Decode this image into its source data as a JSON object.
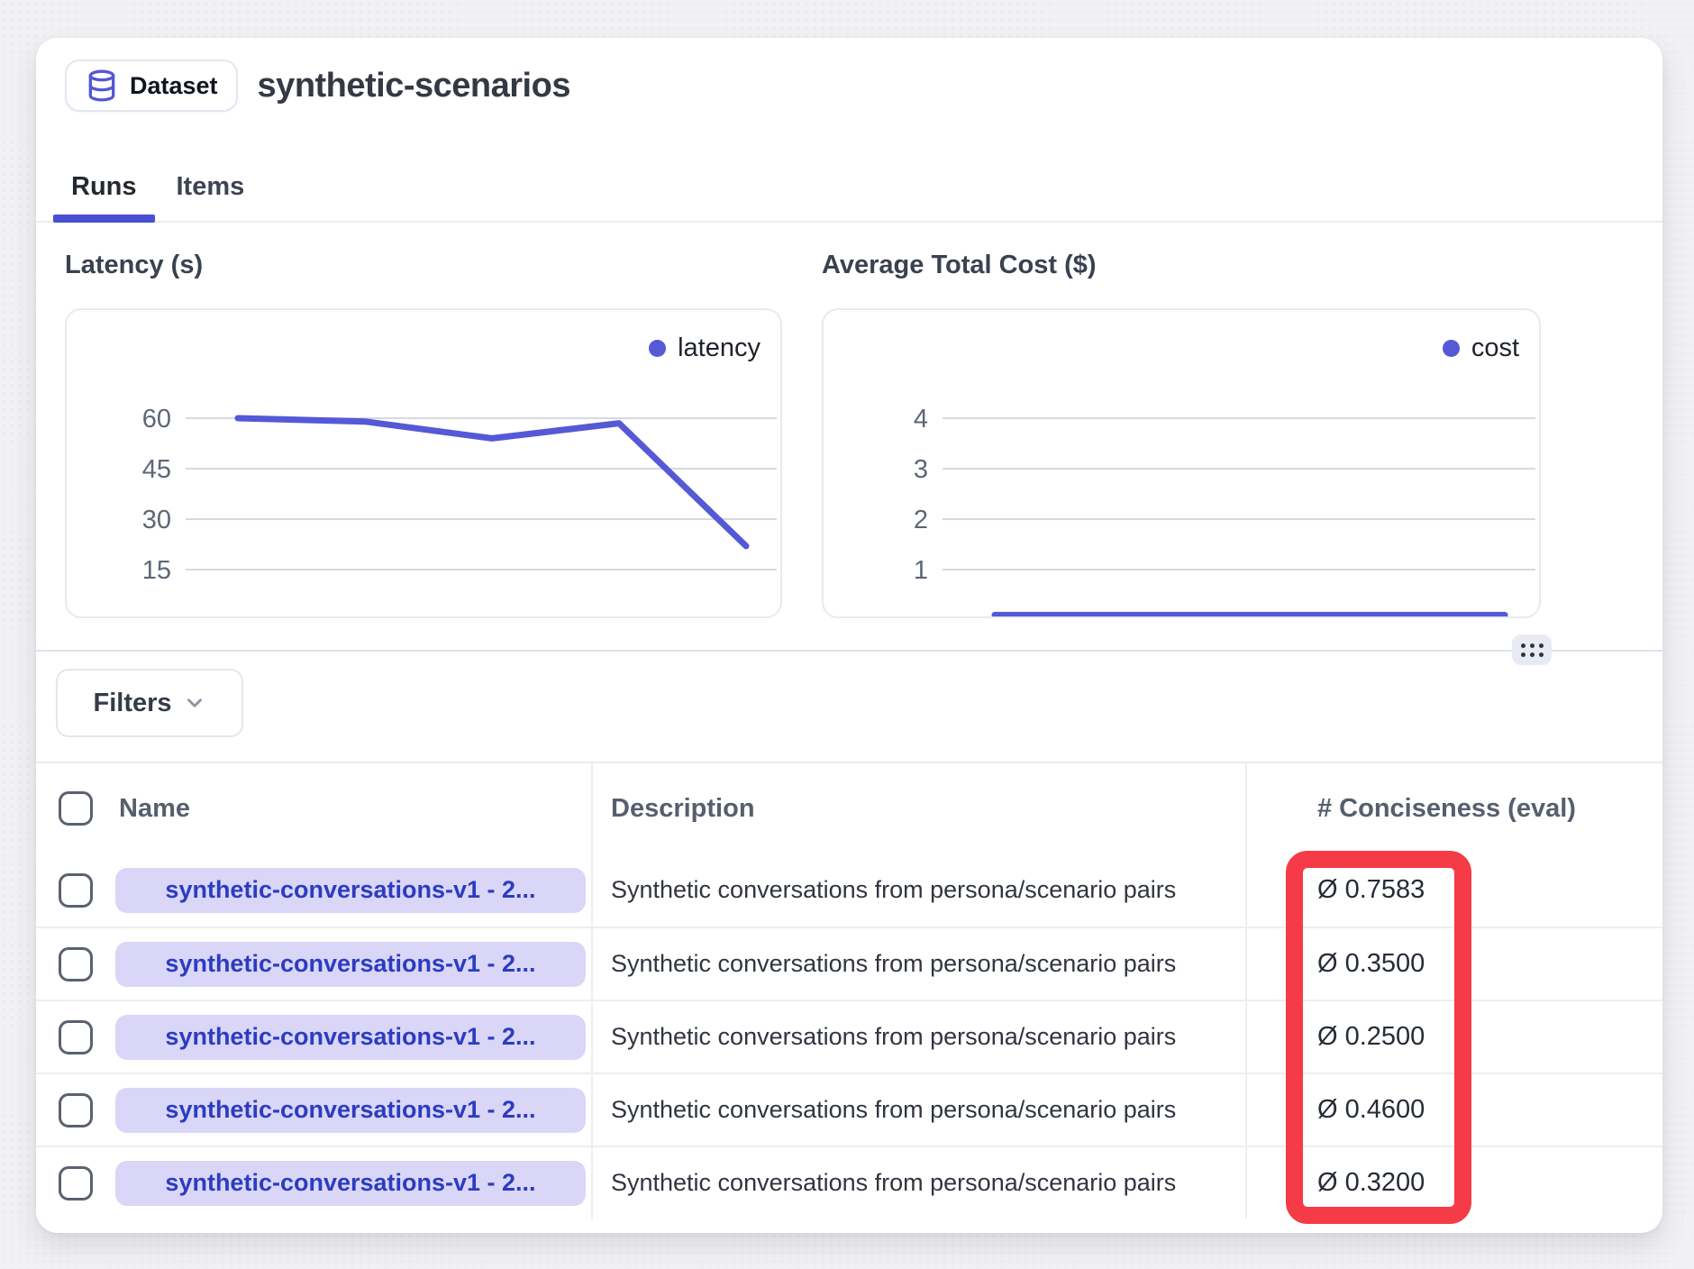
{
  "accent": "#5559d6",
  "header": {
    "badge_label": "Dataset",
    "title": "synthetic-scenarios"
  },
  "tabs": [
    {
      "label": "Runs",
      "active": true
    },
    {
      "label": "Items",
      "active": false
    }
  ],
  "chart_data": [
    {
      "type": "line",
      "title": "Latency (s)",
      "legend_label": "latency",
      "legend_position": "top-right",
      "color": "#5559d6",
      "x": [
        1,
        2,
        3,
        4,
        5
      ],
      "x_tick_labels_visible": false,
      "series": [
        {
          "name": "latency",
          "values": [
            60,
            59,
            54,
            58.5,
            22
          ]
        }
      ],
      "y_ticks": [
        60,
        45,
        30,
        15
      ],
      "ylim": [
        0,
        75
      ],
      "grid": true,
      "xlabel": "",
      "ylabel": ""
    },
    {
      "type": "line",
      "title": "Average Total Cost ($)",
      "legend_label": "cost",
      "legend_position": "top-right",
      "color": "#5559d6",
      "x": [
        1,
        2,
        3,
        4,
        5
      ],
      "x_tick_labels_visible": false,
      "series": [
        {
          "name": "cost",
          "values": [
            0.1,
            0.1,
            0.1,
            0.1,
            0.1
          ]
        }
      ],
      "y_ticks": [
        4,
        3,
        2,
        1
      ],
      "ylim": [
        0,
        5
      ],
      "grid": true,
      "xlabel": "",
      "ylabel": ""
    }
  ],
  "filters": {
    "label": "Filters"
  },
  "table": {
    "columns": {
      "name": "Name",
      "description": "Description",
      "conciseness": "# Conciseness (eval)"
    },
    "rows": [
      {
        "name": "synthetic-conversations-v1 - 2...",
        "description": "Synthetic conversations from persona/scenario pairs",
        "conciseness": "Ø 0.7583"
      },
      {
        "name": "synthetic-conversations-v1 - 2...",
        "description": "Synthetic conversations from persona/scenario pairs",
        "conciseness": "Ø 0.3500"
      },
      {
        "name": "synthetic-conversations-v1 - 2...",
        "description": "Synthetic conversations from persona/scenario pairs",
        "conciseness": "Ø 0.2500"
      },
      {
        "name": "synthetic-conversations-v1 - 2...",
        "description": "Synthetic conversations from persona/scenario pairs",
        "conciseness": "Ø 0.4600"
      },
      {
        "name": "synthetic-conversations-v1 - 2...",
        "description": "Synthetic conversations from persona/scenario pairs",
        "conciseness": "Ø 0.3200"
      }
    ]
  },
  "annotation": {
    "type": "highlight-box",
    "color": "#f43b47"
  }
}
